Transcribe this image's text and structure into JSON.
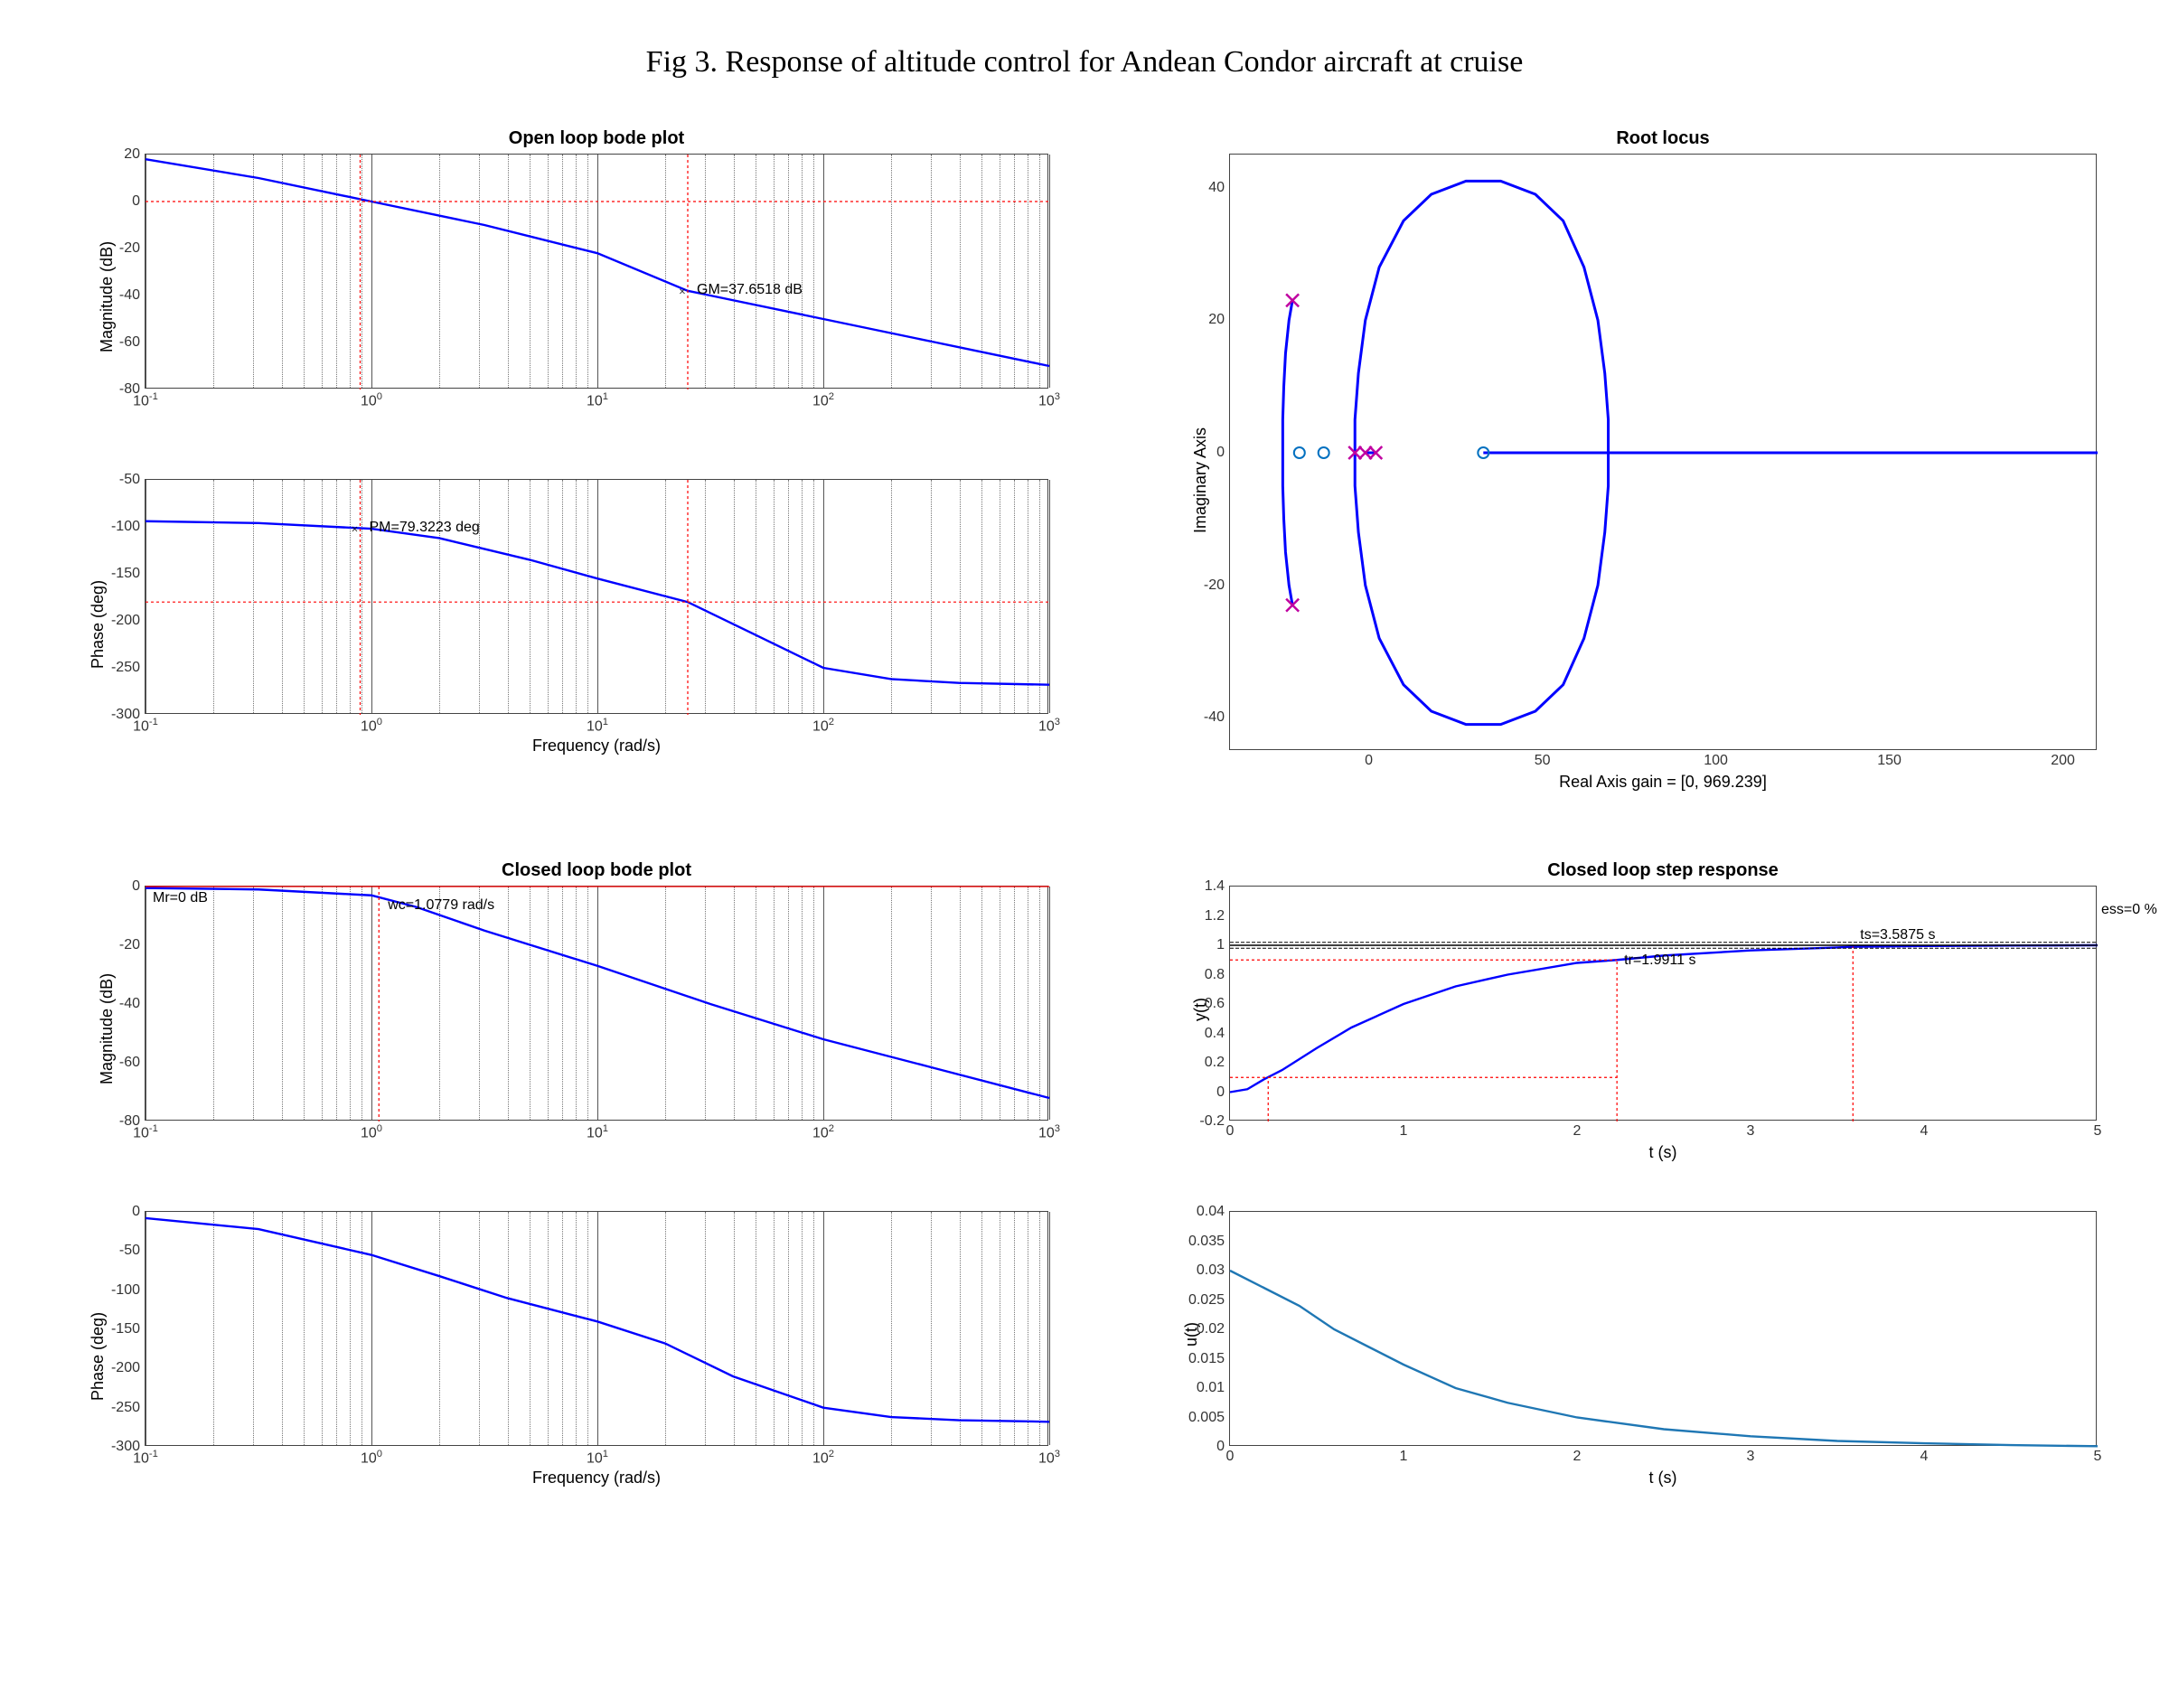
{
  "title": "Fig 3. Response of altitude control for Andean Condor aircraft at cruise",
  "colors": {
    "line_main": "#0000ff",
    "marker_red": "#ff0000",
    "grid": "#777777",
    "axis": "#444444",
    "bg": "#ffffff",
    "pole_x": "#c000a0",
    "zero_o": "#0070c0",
    "step_line": "#1f77b4"
  },
  "font": {
    "title_pt": 20,
    "label_pt": 18,
    "tick_pt": 16,
    "page_title_pt": 34,
    "weight_title": "bold"
  },
  "open_bode": {
    "title": "Open loop bode plot",
    "xlabel": "Frequency (rad/s)",
    "mag": {
      "ylabel": "Magnitude (dB)",
      "ylim": [
        -80,
        20
      ],
      "ytick_step": 20,
      "xlim_log": [
        -1,
        3
      ],
      "data": [
        [
          -1,
          18
        ],
        [
          -0.5,
          10
        ],
        [
          0,
          0
        ],
        [
          0.5,
          -10
        ],
        [
          1,
          -22
        ],
        [
          1.4,
          -38
        ],
        [
          1.5,
          -40
        ],
        [
          2,
          -50
        ],
        [
          2.5,
          -60
        ],
        [
          3,
          -70
        ]
      ],
      "gm_x_log": 1.4,
      "gm_y": -38,
      "gm_label": "GM=37.6518 dB",
      "zero_db_line": 0,
      "gc_x_log": -0.05
    },
    "phase": {
      "ylabel": "Phase (deg)",
      "ylim": [
        -300,
        -50
      ],
      "ytick_step": 50,
      "xlim_log": [
        -1,
        3
      ],
      "data": [
        [
          -1,
          -94
        ],
        [
          -0.5,
          -96
        ],
        [
          0,
          -102
        ],
        [
          0.3,
          -112
        ],
        [
          0.7,
          -135
        ],
        [
          1,
          -155
        ],
        [
          1.4,
          -180
        ],
        [
          1.7,
          -215
        ],
        [
          2,
          -250
        ],
        [
          2.3,
          -262
        ],
        [
          2.6,
          -266
        ],
        [
          3,
          -268
        ]
      ],
      "pm_x_log": -0.05,
      "pm_y": -102,
      "pm_label": "PM=79.3223 deg",
      "minus180_line": -180,
      "pc_x_log": 1.4
    }
  },
  "closed_bode": {
    "title": "Closed loop bode plot",
    "xlabel": "Frequency (rad/s)",
    "mag": {
      "ylabel": "Magnitude (dB)",
      "ylim": [
        -80,
        0
      ],
      "ytick_step": 20,
      "xlim_log": [
        -1,
        3
      ],
      "data": [
        [
          -1,
          -0.5
        ],
        [
          -0.5,
          -1
        ],
        [
          0,
          -3
        ],
        [
          0.2,
          -7
        ],
        [
          0.5,
          -15
        ],
        [
          1,
          -27
        ],
        [
          1.5,
          -40
        ],
        [
          2,
          -52
        ],
        [
          2.5,
          -62
        ],
        [
          3,
          -72
        ]
      ],
      "mr_label": "Mr=0 dB",
      "mr_x_log": -1,
      "mr_y": 0,
      "wc_label": "wc=1.0779 rad/s",
      "wc_x_log": 0.033,
      "wc_y": -3
    },
    "phase": {
      "ylabel": "Phase (deg)",
      "ylim": [
        -300,
        0
      ],
      "ytick_step": 50,
      "xlim_log": [
        -1,
        3
      ],
      "data": [
        [
          -1,
          -8
        ],
        [
          -0.5,
          -22
        ],
        [
          0,
          -55
        ],
        [
          0.3,
          -82
        ],
        [
          0.6,
          -110
        ],
        [
          1,
          -140
        ],
        [
          1.3,
          -168
        ],
        [
          1.6,
          -210
        ],
        [
          2,
          -250
        ],
        [
          2.3,
          -262
        ],
        [
          2.6,
          -266
        ],
        [
          3,
          -268
        ]
      ]
    }
  },
  "rlocus": {
    "title": "Root locus",
    "xlabel": "Real Axis    gain = [0, 969.239]",
    "ylabel": "Imaginary Axis",
    "xlim": [
      -40,
      210
    ],
    "xtick_step": 50,
    "xtick_start": 0,
    "ylim": [
      -45,
      45
    ],
    "ytick_step": 20,
    "ytick_start": -40,
    "poles": [
      [
        -22,
        23
      ],
      [
        -22,
        -23
      ],
      [
        -4,
        0
      ],
      [
        -1,
        0
      ],
      [
        2,
        0
      ]
    ],
    "zeros": [
      [
        -20,
        0
      ],
      [
        -13,
        0
      ],
      [
        33,
        0
      ]
    ],
    "branches": {
      "left_arc": [
        [
          -22,
          -23
        ],
        [
          -23,
          -20
        ],
        [
          -24,
          -15
        ],
        [
          -24.5,
          -10
        ],
        [
          -24.8,
          -5
        ],
        [
          -24.8,
          5
        ],
        [
          -24.5,
          10
        ],
        [
          -24,
          15
        ],
        [
          -23,
          20
        ],
        [
          -22,
          23
        ]
      ],
      "big_ellipse_upper": [
        [
          -4,
          0
        ],
        [
          -4,
          5
        ],
        [
          -3,
          12
        ],
        [
          -1,
          20
        ],
        [
          3,
          28
        ],
        [
          10,
          35
        ],
        [
          18,
          39
        ],
        [
          28,
          41
        ],
        [
          38,
          41
        ],
        [
          48,
          39
        ],
        [
          56,
          35
        ],
        [
          62,
          28
        ],
        [
          66,
          20
        ],
        [
          68,
          12
        ],
        [
          69,
          5
        ],
        [
          69,
          0
        ]
      ],
      "big_ellipse_lower": [
        [
          -4,
          0
        ],
        [
          -4,
          -5
        ],
        [
          -3,
          -12
        ],
        [
          -1,
          -20
        ],
        [
          3,
          -28
        ],
        [
          10,
          -35
        ],
        [
          18,
          -39
        ],
        [
          28,
          -41
        ],
        [
          38,
          -41
        ],
        [
          48,
          -39
        ],
        [
          56,
          -35
        ],
        [
          62,
          -28
        ],
        [
          66,
          -20
        ],
        [
          68,
          -12
        ],
        [
          69,
          -5
        ],
        [
          69,
          0
        ]
      ],
      "real_axis_right": [
        [
          33,
          0
        ],
        [
          210,
          0
        ]
      ],
      "short_seg": [
        [
          -1,
          0
        ],
        [
          2,
          0
        ]
      ]
    }
  },
  "step": {
    "title": "Closed loop step response",
    "y": {
      "ylabel": "y(t)",
      "xlabel": "t (s)",
      "xlim": [
        0,
        5
      ],
      "xtick_step": 1,
      "ylim": [
        -0.2,
        1.4
      ],
      "ytick_step": 0.2,
      "data": [
        [
          0,
          0
        ],
        [
          0.1,
          0.02
        ],
        [
          0.2,
          0.09
        ],
        [
          0.3,
          0.15
        ],
        [
          0.5,
          0.3
        ],
        [
          0.7,
          0.44
        ],
        [
          1.0,
          0.6
        ],
        [
          1.3,
          0.72
        ],
        [
          1.6,
          0.8
        ],
        [
          2.0,
          0.88
        ],
        [
          2.23,
          0.9
        ],
        [
          2.5,
          0.93
        ],
        [
          3.0,
          0.965
        ],
        [
          3.5,
          0.985
        ],
        [
          3.59,
          0.99
        ],
        [
          4.0,
          0.995
        ],
        [
          4.5,
          0.998
        ],
        [
          5.0,
          1.0
        ]
      ],
      "tr_label": "tr=1.9911 s",
      "tr_x": 2.23,
      "tr_y": 0.9,
      "ts_label": "ts=3.5875 s",
      "ts_x": 3.59,
      "ts_y": 0.99,
      "ess_label": "ess=0 %",
      "ref": 1.0,
      "band": 0.02,
      "rise_lo": 0.1,
      "rise_lo_x": 0.22
    },
    "u": {
      "ylabel": "u(t)",
      "xlabel": "t (s)",
      "xlim": [
        0,
        5
      ],
      "xtick_step": 1,
      "ylim": [
        0,
        0.04
      ],
      "ytick_step": 0.005,
      "data": [
        [
          0,
          0.03
        ],
        [
          0.2,
          0.027
        ],
        [
          0.4,
          0.024
        ],
        [
          0.6,
          0.02
        ],
        [
          0.8,
          0.017
        ],
        [
          1.0,
          0.014
        ],
        [
          1.3,
          0.01
        ],
        [
          1.6,
          0.0075
        ],
        [
          2.0,
          0.005
        ],
        [
          2.5,
          0.003
        ],
        [
          3.0,
          0.0018
        ],
        [
          3.5,
          0.001
        ],
        [
          4.0,
          0.0006
        ],
        [
          4.5,
          0.0003
        ],
        [
          5.0,
          0.0001
        ]
      ]
    }
  }
}
